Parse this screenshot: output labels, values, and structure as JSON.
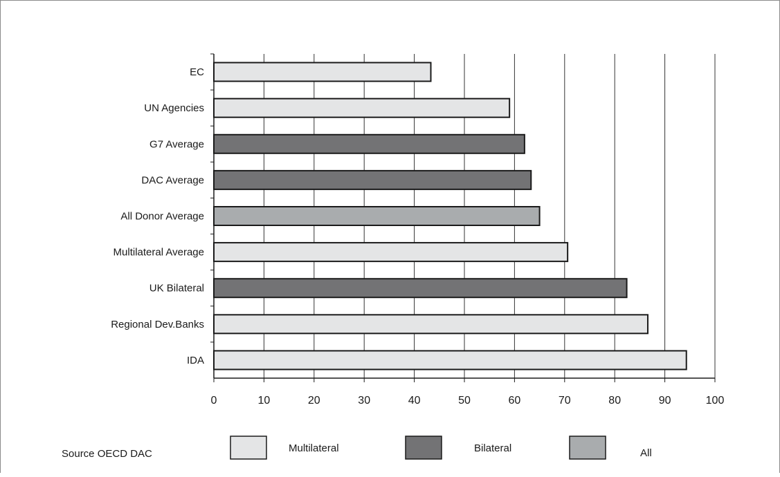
{
  "chart_data": {
    "type": "bar",
    "orientation": "horizontal",
    "categories": [
      "EC",
      "UN Agencies",
      "G7 Average",
      "DAC Average",
      "All Donor Average",
      "Multilateral Average",
      "UK Bilateral",
      "Regional Dev.Banks",
      "IDA"
    ],
    "values": [
      43.3,
      59,
      62,
      63.3,
      65,
      70.6,
      82.4,
      86.6,
      94.3
    ],
    "groups": [
      "multilateral",
      "multilateral",
      "bilateral",
      "bilateral",
      "all",
      "multilateral",
      "bilateral",
      "multilateral",
      "multilateral"
    ],
    "xlim": [
      0,
      100
    ],
    "xticks": [
      "0",
      "10",
      "20",
      "30",
      "40",
      "50",
      "60",
      "70",
      "80",
      "90",
      "100"
    ],
    "grid": "vertical",
    "legend_position": "bottom",
    "legend": [
      {
        "key": "multilateral",
        "label": "Multilateral",
        "color": "#e4e5e6"
      },
      {
        "key": "bilateral",
        "label": "Bilateral",
        "color": "#737375"
      },
      {
        "key": "all",
        "label": "All",
        "color": "#a9acae"
      }
    ],
    "source": "Source OECD DAC",
    "title": "",
    "xlabel": "",
    "ylabel": ""
  }
}
